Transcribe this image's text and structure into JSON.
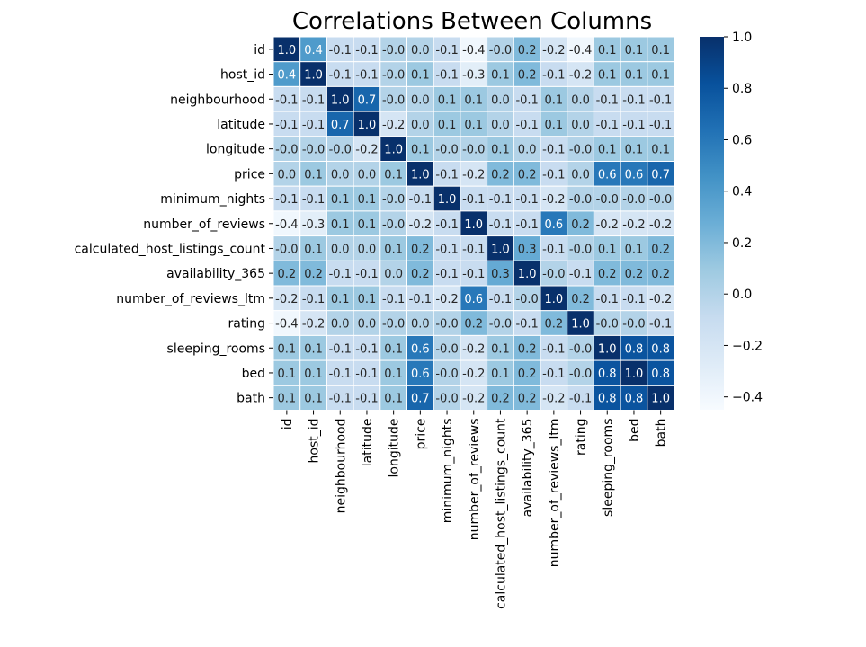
{
  "chart_data": {
    "type": "heatmap",
    "title": "Correlations Between Columns",
    "labels": [
      "id",
      "host_id",
      "neighbourhood",
      "latitude",
      "longitude",
      "price",
      "minimum_nights",
      "number_of_reviews",
      "calculated_host_listings_count",
      "availability_365",
      "number_of_reviews_ltm",
      "rating",
      "sleeping_rooms",
      "bed",
      "bath"
    ],
    "values": [
      [
        "1.0",
        "0.4",
        "-0.1",
        "-0.1",
        "-0.0",
        "0.0",
        "-0.1",
        "-0.4",
        "-0.0",
        "0.2",
        "-0.2",
        "-0.4",
        "0.1",
        "0.1",
        "0.1"
      ],
      [
        "0.4",
        "1.0",
        "-0.1",
        "-0.1",
        "-0.0",
        "0.1",
        "-0.1",
        "-0.3",
        "0.1",
        "0.2",
        "-0.1",
        "-0.2",
        "0.1",
        "0.1",
        "0.1"
      ],
      [
        "-0.1",
        "-0.1",
        "1.0",
        "0.7",
        "-0.0",
        "0.0",
        "0.1",
        "0.1",
        "0.0",
        "-0.1",
        "0.1",
        "0.0",
        "-0.1",
        "-0.1",
        "-0.1"
      ],
      [
        "-0.1",
        "-0.1",
        "0.7",
        "1.0",
        "-0.2",
        "0.0",
        "0.1",
        "0.1",
        "0.0",
        "-0.1",
        "0.1",
        "0.0",
        "-0.1",
        "-0.1",
        "-0.1"
      ],
      [
        "-0.0",
        "-0.0",
        "-0.0",
        "-0.2",
        "1.0",
        "0.1",
        "-0.0",
        "-0.0",
        "0.1",
        "0.0",
        "-0.1",
        "-0.0",
        "0.1",
        "0.1",
        "0.1"
      ],
      [
        "0.0",
        "0.1",
        "0.0",
        "0.0",
        "0.1",
        "1.0",
        "-0.1",
        "-0.2",
        "0.2",
        "0.2",
        "-0.1",
        "0.0",
        "0.6",
        "0.6",
        "0.7"
      ],
      [
        "-0.1",
        "-0.1",
        "0.1",
        "0.1",
        "-0.0",
        "-0.1",
        "1.0",
        "-0.1",
        "-0.1",
        "-0.1",
        "-0.2",
        "-0.0",
        "-0.0",
        "-0.0",
        "-0.0"
      ],
      [
        "-0.4",
        "-0.3",
        "0.1",
        "0.1",
        "-0.0",
        "-0.2",
        "-0.1",
        "1.0",
        "-0.1",
        "-0.1",
        "0.6",
        "0.2",
        "-0.2",
        "-0.2",
        "-0.2"
      ],
      [
        "-0.0",
        "0.1",
        "0.0",
        "0.0",
        "0.1",
        "0.2",
        "-0.1",
        "-0.1",
        "1.0",
        "0.3",
        "-0.1",
        "-0.0",
        "0.1",
        "0.1",
        "0.2"
      ],
      [
        "0.2",
        "0.2",
        "-0.1",
        "-0.1",
        "0.0",
        "0.2",
        "-0.1",
        "-0.1",
        "0.3",
        "1.0",
        "-0.0",
        "-0.1",
        "0.2",
        "0.2",
        "0.2"
      ],
      [
        "-0.2",
        "-0.1",
        "0.1",
        "0.1",
        "-0.1",
        "-0.1",
        "-0.2",
        "0.6",
        "-0.1",
        "-0.0",
        "1.0",
        "0.2",
        "-0.1",
        "-0.1",
        "-0.2"
      ],
      [
        "-0.4",
        "-0.2",
        "0.0",
        "0.0",
        "-0.0",
        "0.0",
        "-0.0",
        "0.2",
        "-0.0",
        "-0.1",
        "0.2",
        "1.0",
        "-0.0",
        "-0.0",
        "-0.1"
      ],
      [
        "0.1",
        "0.1",
        "-0.1",
        "-0.1",
        "0.1",
        "0.6",
        "-0.0",
        "-0.2",
        "0.1",
        "0.2",
        "-0.1",
        "-0.0",
        "1.0",
        "0.8",
        "0.8"
      ],
      [
        "0.1",
        "0.1",
        "-0.1",
        "-0.1",
        "0.1",
        "0.6",
        "-0.0",
        "-0.2",
        "0.1",
        "0.2",
        "-0.1",
        "-0.0",
        "0.8",
        "1.0",
        "0.8"
      ],
      [
        "0.1",
        "0.1",
        "-0.1",
        "-0.1",
        "0.1",
        "0.7",
        "-0.0",
        "-0.2",
        "0.2",
        "0.2",
        "-0.2",
        "-0.1",
        "0.8",
        "0.8",
        "1.0"
      ]
    ],
    "colorbar": {
      "range": [
        -0.45,
        1.0
      ],
      "ticks": [
        "1.0",
        "0.8",
        "0.6",
        "0.4",
        "0.2",
        "0.0",
        "−0.2",
        "−0.4"
      ]
    },
    "colormap": "Blues",
    "annotations": true
  }
}
